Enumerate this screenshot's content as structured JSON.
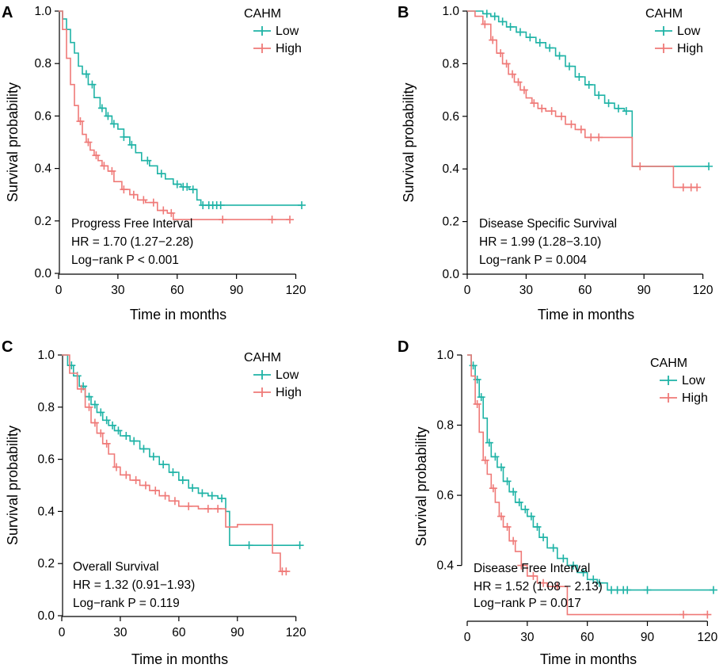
{
  "colors": {
    "low": "#1fb3a6",
    "high": "#ef7a78",
    "axis": "#000000"
  },
  "chart_data": [
    {
      "type": "line",
      "panel": "A",
      "title": "Progress Free Interval",
      "xlabel": "Time in months",
      "ylabel": "Survival probability",
      "xlim": [
        0,
        125
      ],
      "ylim": [
        0,
        1
      ],
      "xticks": [
        0,
        30,
        60,
        90,
        120
      ],
      "yticks": [
        0.0,
        0.2,
        0.4,
        0.6,
        0.8,
        1.0
      ],
      "xtick_labels": [
        "0",
        "30",
        "60",
        "90",
        "120"
      ],
      "ytick_labels": [
        "0.0",
        "0.2",
        "0.4",
        "0.6",
        "0.8",
        "1.0"
      ],
      "legend_title": "CAHM",
      "annotations": [
        "Progress Free Interval",
        "HR = 1.70 (1.27−2.28)",
        "Log−rank P < 0.001"
      ],
      "series": [
        {
          "name": "Low",
          "color": "#1fb3a6",
          "x": [
            0,
            2,
            4,
            6,
            8,
            10,
            12,
            15,
            18,
            21,
            24,
            27,
            30,
            33,
            36,
            39,
            42,
            46,
            50,
            54,
            58,
            62,
            66,
            70,
            72,
            80,
            100,
            123
          ],
          "y": [
            1.0,
            0.97,
            0.93,
            0.88,
            0.84,
            0.79,
            0.76,
            0.72,
            0.67,
            0.63,
            0.6,
            0.57,
            0.55,
            0.52,
            0.49,
            0.46,
            0.43,
            0.41,
            0.38,
            0.36,
            0.34,
            0.33,
            0.32,
            0.28,
            0.26,
            0.26,
            0.26,
            0.26
          ],
          "censored": [
            14,
            17,
            22,
            25,
            28,
            33,
            37,
            45,
            52,
            60,
            63,
            65,
            68,
            73,
            76,
            78,
            80,
            82,
            123
          ]
        },
        {
          "name": "High",
          "color": "#ef7a78",
          "x": [
            0,
            2,
            4,
            6,
            8,
            10,
            12,
            14,
            16,
            18,
            20,
            22,
            25,
            28,
            32,
            36,
            40,
            44,
            50,
            55,
            58,
            70,
            90,
            117
          ],
          "y": [
            1.0,
            0.93,
            0.82,
            0.72,
            0.64,
            0.58,
            0.53,
            0.5,
            0.47,
            0.45,
            0.43,
            0.41,
            0.39,
            0.35,
            0.32,
            0.3,
            0.28,
            0.27,
            0.24,
            0.23,
            0.205,
            0.205,
            0.205,
            0.205
          ],
          "censored": [
            11,
            15,
            19,
            23,
            27,
            33,
            38,
            43,
            48,
            53,
            57,
            83,
            108,
            117
          ]
        }
      ]
    },
    {
      "type": "line",
      "panel": "B",
      "title": "Disease Specific Survival",
      "xlabel": "Time in months",
      "ylabel": "Survival probability",
      "xlim": [
        0,
        125
      ],
      "ylim": [
        0,
        1
      ],
      "xticks": [
        0,
        30,
        60,
        90,
        120
      ],
      "yticks": [
        0.0,
        0.2,
        0.4,
        0.6,
        0.8,
        1.0
      ],
      "xtick_labels": [
        "0",
        "30",
        "60",
        "90",
        "120"
      ],
      "ytick_labels": [
        "0.0",
        "0.2",
        "0.4",
        "0.6",
        "0.8",
        "1.0"
      ],
      "legend_title": "CAHM",
      "annotations": [
        "Disease Specific Survival",
        "HR = 1.99 (1.28−3.10)",
        "Log−rank P = 0.004"
      ],
      "series": [
        {
          "name": "Low",
          "color": "#1fb3a6",
          "x": [
            0,
            8,
            12,
            16,
            20,
            25,
            30,
            35,
            40,
            45,
            50,
            55,
            60,
            65,
            70,
            75,
            80,
            84,
            88,
            100,
            123
          ],
          "y": [
            1.0,
            0.99,
            0.98,
            0.96,
            0.94,
            0.92,
            0.9,
            0.88,
            0.86,
            0.83,
            0.79,
            0.75,
            0.72,
            0.68,
            0.65,
            0.63,
            0.62,
            0.41,
            0.41,
            0.41,
            0.41
          ],
          "censored": [
            10,
            14,
            18,
            22,
            27,
            32,
            37,
            42,
            47,
            52,
            57,
            62,
            67,
            72,
            77,
            81,
            123
          ]
        },
        {
          "name": "High",
          "color": "#ef7a78",
          "x": [
            0,
            4,
            8,
            12,
            15,
            18,
            21,
            24,
            27,
            30,
            33,
            36,
            40,
            45,
            50,
            55,
            60,
            70,
            84,
            95,
            105,
            117
          ],
          "y": [
            1.0,
            0.98,
            0.95,
            0.89,
            0.84,
            0.8,
            0.76,
            0.73,
            0.7,
            0.67,
            0.65,
            0.63,
            0.62,
            0.6,
            0.57,
            0.55,
            0.52,
            0.52,
            0.41,
            0.41,
            0.33,
            0.33
          ],
          "censored": [
            9,
            13,
            17,
            20,
            23,
            26,
            29,
            34,
            38,
            43,
            48,
            53,
            58,
            63,
            67,
            88,
            110,
            114,
            117
          ]
        }
      ]
    },
    {
      "type": "line",
      "panel": "C",
      "title": "Overall Survival",
      "xlabel": "Time in months",
      "ylabel": "Survival probability",
      "xlim": [
        0,
        125
      ],
      "ylim": [
        0,
        1
      ],
      "xticks": [
        0,
        30,
        60,
        90,
        120
      ],
      "yticks": [
        0.0,
        0.2,
        0.4,
        0.6,
        0.8,
        1.0
      ],
      "xtick_labels": [
        "0",
        "30",
        "60",
        "90",
        "120"
      ],
      "ytick_labels": [
        "0.0",
        "0.2",
        "0.4",
        "0.6",
        "0.8",
        "1.0"
      ],
      "legend_title": "CAHM",
      "annotations": [
        "Overall Survival",
        "HR = 1.32 (0.91−1.93)",
        "Log−rank P = 0.119"
      ],
      "series": [
        {
          "name": "Low",
          "color": "#1fb3a6",
          "x": [
            0,
            3,
            6,
            9,
            12,
            15,
            18,
            21,
            24,
            27,
            30,
            35,
            40,
            45,
            50,
            55,
            60,
            65,
            70,
            75,
            80,
            84,
            86,
            100,
            122
          ],
          "y": [
            1.0,
            0.96,
            0.92,
            0.88,
            0.84,
            0.81,
            0.78,
            0.75,
            0.73,
            0.71,
            0.69,
            0.67,
            0.64,
            0.61,
            0.58,
            0.55,
            0.52,
            0.49,
            0.47,
            0.46,
            0.45,
            0.4,
            0.27,
            0.27,
            0.27
          ],
          "censored": [
            5,
            8,
            11,
            14,
            17,
            20,
            23,
            26,
            29,
            33,
            37,
            42,
            47,
            52,
            57,
            62,
            67,
            72,
            77,
            82,
            96,
            122
          ]
        },
        {
          "name": "High",
          "color": "#ef7a78",
          "x": [
            0,
            4,
            8,
            12,
            15,
            18,
            21,
            24,
            27,
            30,
            35,
            40,
            45,
            50,
            55,
            60,
            70,
            84,
            90,
            100,
            108,
            112,
            116
          ],
          "y": [
            1.0,
            0.93,
            0.87,
            0.8,
            0.74,
            0.7,
            0.66,
            0.62,
            0.57,
            0.54,
            0.52,
            0.5,
            0.48,
            0.46,
            0.44,
            0.42,
            0.41,
            0.34,
            0.35,
            0.35,
            0.24,
            0.17,
            0.17
          ],
          "censored": [
            10,
            14,
            17,
            20,
            23,
            28,
            33,
            38,
            43,
            48,
            53,
            58,
            65,
            75,
            80,
            113,
            115
          ]
        }
      ]
    },
    {
      "type": "line",
      "panel": "D",
      "title": "Disease Free Interval",
      "xlabel": "Time in months",
      "ylabel": "Survival probability",
      "xlim": [
        0,
        125
      ],
      "ylim": [
        0.25,
        1
      ],
      "xticks": [
        0,
        30,
        60,
        90,
        120
      ],
      "yticks": [
        0.4,
        0.6,
        0.8,
        1.0
      ],
      "xtick_labels": [
        "0",
        "30",
        "60",
        "90",
        "120"
      ],
      "ytick_labels": [
        "0.4",
        "0.6",
        "0.8",
        "1.0"
      ],
      "legend_title": "CAHM",
      "annotations": [
        "Disease Free Interval",
        "HR = 1.52 (1.08 − 2.13)",
        "Log−rank P = 0.017"
      ],
      "series": [
        {
          "name": "Low",
          "color": "#1fb3a6",
          "x": [
            0,
            2,
            4,
            6,
            8,
            10,
            12,
            15,
            18,
            21,
            24,
            27,
            30,
            33,
            36,
            40,
            45,
            50,
            55,
            60,
            65,
            70,
            75,
            80,
            123
          ],
          "y": [
            1.0,
            0.97,
            0.93,
            0.88,
            0.82,
            0.75,
            0.71,
            0.68,
            0.64,
            0.61,
            0.58,
            0.56,
            0.54,
            0.51,
            0.48,
            0.45,
            0.42,
            0.4,
            0.38,
            0.36,
            0.35,
            0.33,
            0.33,
            0.33,
            0.33
          ],
          "censored": [
            3,
            5,
            7,
            11,
            14,
            17,
            20,
            23,
            26,
            29,
            32,
            35,
            38,
            43,
            48,
            53,
            58,
            63,
            66,
            72,
            75,
            78,
            80,
            90,
            123
          ]
        },
        {
          "name": "High",
          "color": "#ef7a78",
          "x": [
            0,
            2,
            4,
            6,
            8,
            10,
            12,
            14,
            16,
            18,
            21,
            24,
            27,
            30,
            35,
            40,
            45,
            50,
            55,
            70,
            100,
            120
          ],
          "y": [
            1.0,
            0.94,
            0.86,
            0.78,
            0.7,
            0.66,
            0.62,
            0.58,
            0.54,
            0.51,
            0.47,
            0.44,
            0.4,
            0.37,
            0.35,
            0.34,
            0.34,
            0.26,
            0.26,
            0.26,
            0.26,
            0.26
          ],
          "censored": [
            5,
            9,
            13,
            17,
            20,
            23,
            27,
            33,
            38,
            45,
            108,
            120
          ]
        }
      ]
    }
  ]
}
